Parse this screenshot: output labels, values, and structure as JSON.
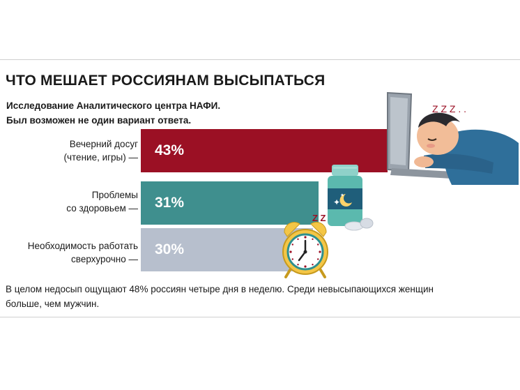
{
  "title": "ЧТО МЕШАЕТ РОССИЯНАМ ВЫСЫПАТЬСЯ",
  "subtitle_lines": [
    "Исследование Аналитического центра НАФИ.",
    "Был возможен не один вариант ответа."
  ],
  "colors": {
    "bar1": "#9b1024",
    "bar2": "#3f8f8e",
    "bar3": "#b7bfcd"
  },
  "chart_data": {
    "type": "bar",
    "orientation": "horizontal",
    "categories": [
      [
        "Вечерний досуг",
        "(чтение, игры) —"
      ],
      [
        "Проблемы",
        "со здоровьем —"
      ],
      [
        "Необходимость работать",
        "сверхурочно —"
      ]
    ],
    "values": [
      43,
      31,
      30
    ],
    "value_labels": [
      "43%",
      "31%",
      "30%"
    ],
    "unit": "%"
  },
  "footnote_lines": [
    "В целом недосып ощущают 48% россиян четыре дня в неделю. Среди невысыпающихся женщин",
    "больше, чем мужчин."
  ],
  "illustrations": {
    "sleeper_letters": "Z Z Z . .",
    "clock_letters": "Z Z"
  }
}
